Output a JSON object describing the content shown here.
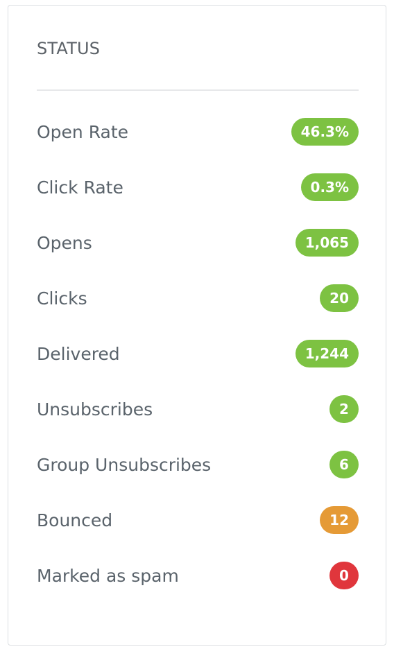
{
  "panel": {
    "title": "STATUS"
  },
  "stats": [
    {
      "label": "Open Rate",
      "value": "46.3%",
      "status": "green",
      "color": "#7dc242"
    },
    {
      "label": "Click Rate",
      "value": "0.3%",
      "status": "green",
      "color": "#7dc242"
    },
    {
      "label": "Opens",
      "value": "1,065",
      "status": "green",
      "color": "#7dc242"
    },
    {
      "label": "Clicks",
      "value": "20",
      "status": "green",
      "color": "#7dc242"
    },
    {
      "label": "Delivered",
      "value": "1,244",
      "status": "green",
      "color": "#7dc242"
    },
    {
      "label": "Unsubscribes",
      "value": "2",
      "status": "green",
      "color": "#7dc242"
    },
    {
      "label": "Group Unsubscribes",
      "value": "6",
      "status": "green",
      "color": "#7dc242"
    },
    {
      "label": "Bounced",
      "value": "12",
      "status": "orange",
      "color": "#e59a36"
    },
    {
      "label": "Marked as spam",
      "value": "0",
      "status": "red",
      "color": "#e0363c"
    }
  ]
}
